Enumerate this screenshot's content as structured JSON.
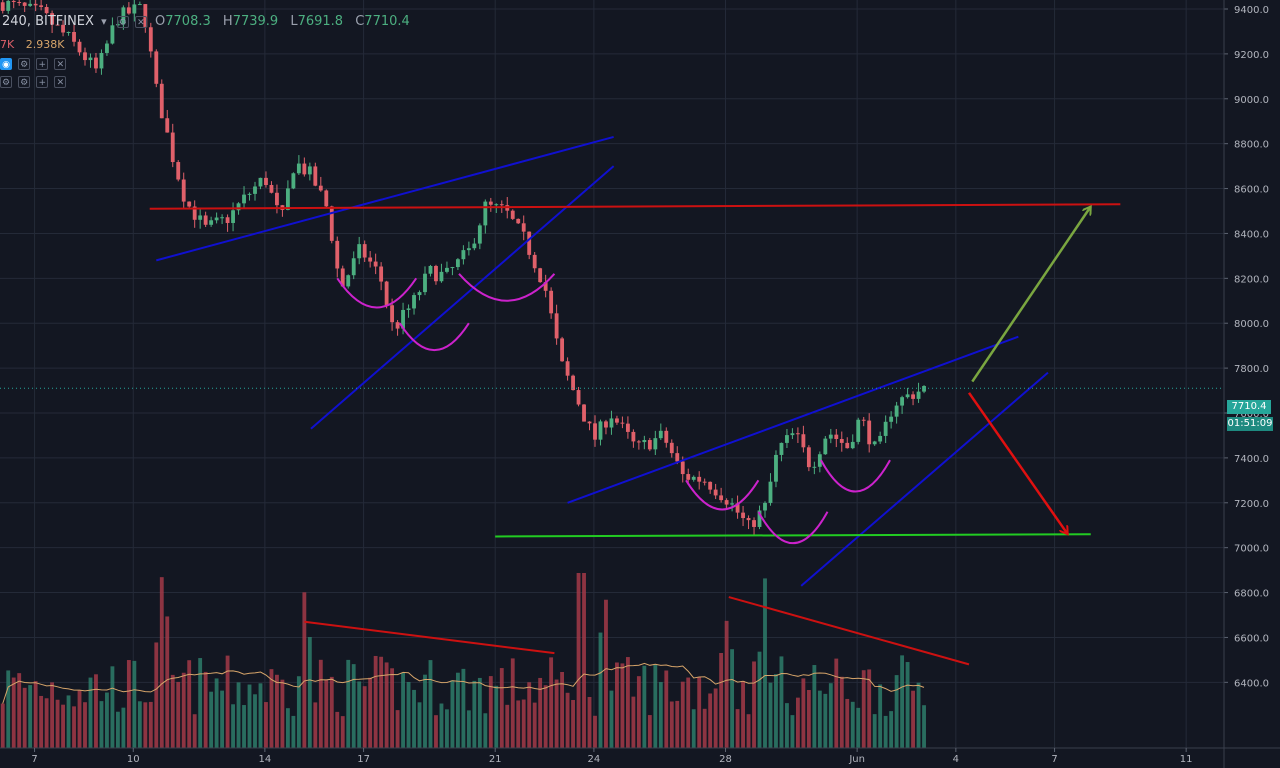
{
  "header": {
    "symbol": "240, BITFINEX",
    "dropdown_glyph": "▾",
    "open_label": "O",
    "open_value": "7708.3",
    "high_label": "H",
    "high_value": "7739.9",
    "low_label": "L",
    "low_value": "7691.8",
    "close_label": "C",
    "close_value": "7710.4",
    "vol_partial": "7K",
    "vol_value": "2.938K"
  },
  "colors": {
    "background": "#131722",
    "grid": "#242a38",
    "candle_up": "#4caf80",
    "candle_down": "#e0606a",
    "volume_up": "#2e7d6a",
    "volume_down": "#a33a48",
    "volume_ma": "#d7a56a",
    "trend_blue": "#1010d0",
    "resistance_red": "#cc1111",
    "support_green": "#22cc22",
    "arrow_up": "#7aa640",
    "arrow_down": "#e01010",
    "arc_magenta": "#cc22cc",
    "price_badge": "#26a69a"
  },
  "last_price": {
    "value": "7710.4",
    "countdown": "01:51:09"
  },
  "chart_data": {
    "type": "candlestick",
    "timeframe": "240",
    "exchange": "BITFINEX",
    "y_ticks": [
      "9400.0",
      "9200.0",
      "9000.0",
      "8800.0",
      "8600.0",
      "8400.0",
      "8200.0",
      "8000.0",
      "7800.0",
      "7600.0",
      "7400.0",
      "7200.0",
      "7000.0",
      "6800.0",
      "6600.0",
      "6400.0"
    ],
    "ylim": [
      6250,
      9400
    ],
    "x_ticks": [
      "7",
      "10",
      "14",
      "17",
      "21",
      "24",
      "28",
      "Jun",
      "4",
      "7",
      "11"
    ],
    "x_tick_days": [
      7,
      10,
      14,
      17,
      21,
      24,
      28,
      32,
      35,
      38,
      42
    ],
    "x_range_days": [
      5.95,
      43.15
    ],
    "close_path": [
      {
        "day": 5.95,
        "price": 9430
      },
      {
        "day": 7.2,
        "price": 9380
      },
      {
        "day": 8.1,
        "price": 9260
      },
      {
        "day": 8.9,
        "price": 9120
      },
      {
        "day": 9.5,
        "price": 9360
      },
      {
        "day": 10.3,
        "price": 9410
      },
      {
        "day": 10.7,
        "price": 9040
      },
      {
        "day": 11.2,
        "price": 8740
      },
      {
        "day": 11.6,
        "price": 8540
      },
      {
        "day": 12.2,
        "price": 8420
      },
      {
        "day": 12.9,
        "price": 8470
      },
      {
        "day": 13.4,
        "price": 8560
      },
      {
        "day": 14,
        "price": 8650
      },
      {
        "day": 14.5,
        "price": 8450
      },
      {
        "day": 14.9,
        "price": 8720
      },
      {
        "day": 15.4,
        "price": 8660
      },
      {
        "day": 15.9,
        "price": 8510
      },
      {
        "day": 16.3,
        "price": 8150
      },
      {
        "day": 16.9,
        "price": 8330
      },
      {
        "day": 17.5,
        "price": 8210
      },
      {
        "day": 17.9,
        "price": 7970
      },
      {
        "day": 18.5,
        "price": 8090
      },
      {
        "day": 19,
        "price": 8230
      },
      {
        "day": 19.5,
        "price": 8210
      },
      {
        "day": 20.2,
        "price": 8320
      },
      {
        "day": 20.7,
        "price": 8520
      },
      {
        "day": 21.3,
        "price": 8500
      },
      {
        "day": 21.9,
        "price": 8370
      },
      {
        "day": 22.5,
        "price": 8170
      },
      {
        "day": 23,
        "price": 7820
      },
      {
        "day": 23.5,
        "price": 7660
      },
      {
        "day": 24,
        "price": 7480
      },
      {
        "day": 24.5,
        "price": 7600
      },
      {
        "day": 25.3,
        "price": 7440
      },
      {
        "day": 26.1,
        "price": 7500
      },
      {
        "day": 26.7,
        "price": 7320
      },
      {
        "day": 27.4,
        "price": 7300
      },
      {
        "day": 28.1,
        "price": 7210
      },
      {
        "day": 28.7,
        "price": 7090
      },
      {
        "day": 29.2,
        "price": 7180
      },
      {
        "day": 29.6,
        "price": 7440
      },
      {
        "day": 30.1,
        "price": 7510
      },
      {
        "day": 30.6,
        "price": 7360
      },
      {
        "day": 31.1,
        "price": 7520
      },
      {
        "day": 31.7,
        "price": 7450
      },
      {
        "day": 32.1,
        "price": 7580
      },
      {
        "day": 32.6,
        "price": 7420
      },
      {
        "day": 33.1,
        "price": 7640
      },
      {
        "day": 33.6,
        "price": 7680
      },
      {
        "day": 34.05,
        "price": 7710
      }
    ],
    "volume_peaks": [
      {
        "day": 10.9,
        "vol": "high"
      },
      {
        "day": 15.2,
        "vol": "high"
      },
      {
        "day": 23.6,
        "vol": "very_high"
      },
      {
        "day": 24.3,
        "vol": "high"
      },
      {
        "day": 28,
        "vol": "high"
      },
      {
        "day": 29.2,
        "vol": "high"
      }
    ],
    "annotations": [
      {
        "kind": "trendline",
        "color": "trend_blue",
        "from": {
          "day": 10.7,
          "price": 8280
        },
        "to": {
          "day": 24.6,
          "price": 8830
        }
      },
      {
        "kind": "trendline",
        "color": "trend_blue",
        "from": {
          "day": 15.4,
          "price": 7530
        },
        "to": {
          "day": 24.6,
          "price": 8700
        }
      },
      {
        "kind": "trendline",
        "color": "trend_blue",
        "from": {
          "day": 23.2,
          "price": 7200
        },
        "to": {
          "day": 36.9,
          "price": 7940
        }
      },
      {
        "kind": "trendline",
        "color": "trend_blue",
        "from": {
          "day": 30.3,
          "price": 6830
        },
        "to": {
          "day": 37.8,
          "price": 7780
        }
      },
      {
        "kind": "hline",
        "color": "resistance_red",
        "from": {
          "day": 10.5,
          "price": 8510
        },
        "to": {
          "day": 40,
          "price": 8530
        }
      },
      {
        "kind": "hline",
        "color": "support_green",
        "from": {
          "day": 21,
          "price": 7050
        },
        "to": {
          "day": 39.1,
          "price": 7060
        }
      },
      {
        "kind": "arrow",
        "color": "arrow_up",
        "from": {
          "day": 35.5,
          "price": 7740
        },
        "to": {
          "day": 39.1,
          "price": 8520
        }
      },
      {
        "kind": "arrow",
        "color": "arrow_down",
        "from": {
          "day": 35.4,
          "price": 7690
        },
        "to": {
          "day": 38.4,
          "price": 7060
        }
      },
      {
        "kind": "arc",
        "color": "arc_magenta",
        "from": {
          "day": 16.2,
          "price": 8200
        },
        "to": {
          "day": 18.6,
          "price": 8200
        },
        "depth": 130
      },
      {
        "kind": "arc",
        "color": "arc_magenta",
        "from": {
          "day": 18.1,
          "price": 8000
        },
        "to": {
          "day": 20.2,
          "price": 8000
        },
        "depth": 120
      },
      {
        "kind": "arc",
        "color": "arc_magenta",
        "from": {
          "day": 19.9,
          "price": 8220
        },
        "to": {
          "day": 22.8,
          "price": 8220
        },
        "depth": 120
      },
      {
        "kind": "arc",
        "color": "arc_magenta",
        "from": {
          "day": 26.8,
          "price": 7300
        },
        "to": {
          "day": 29,
          "price": 7300
        },
        "depth": 130
      },
      {
        "kind": "arc",
        "color": "arc_magenta",
        "from": {
          "day": 29,
          "price": 7160
        },
        "to": {
          "day": 31.1,
          "price": 7160
        },
        "depth": 140
      },
      {
        "kind": "arc",
        "color": "arc_magenta",
        "from": {
          "day": 30.9,
          "price": 7390
        },
        "to": {
          "day": 33,
          "price": 7390
        },
        "depth": 140
      },
      {
        "kind": "trendline",
        "color": "resistance_red",
        "from": {
          "day": 15.2,
          "price": 6670
        },
        "to": {
          "day": 22.8,
          "price": 6530
        }
      },
      {
        "kind": "trendline",
        "color": "resistance_red",
        "from": {
          "day": 28.1,
          "price": 6780
        },
        "to": {
          "day": 35.4,
          "price": 6480
        }
      }
    ]
  }
}
